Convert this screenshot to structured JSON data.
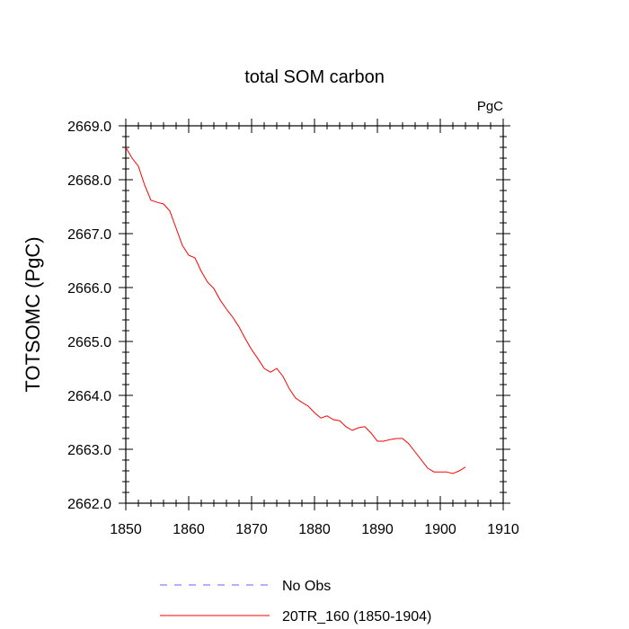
{
  "chart_data": {
    "type": "line",
    "title": "total SOM carbon",
    "units_label": "PgC",
    "ylabel": "TOTSOMC  (PgC)",
    "xlabel": "",
    "xlim": [
      1850,
      1910
    ],
    "ylim": [
      2662.0,
      2669.0
    ],
    "xticks": [
      1850,
      1860,
      1870,
      1880,
      1890,
      1900,
      1910
    ],
    "xtick_labels": [
      "1850",
      "1860",
      "1870",
      "1880",
      "1890",
      "1900",
      "1910"
    ],
    "yticks": [
      2662.0,
      2663.0,
      2664.0,
      2665.0,
      2666.0,
      2667.0,
      2668.0,
      2669.0
    ],
    "ytick_labels": [
      "2662.0",
      "2663.0",
      "2664.0",
      "2665.0",
      "2666.0",
      "2667.0",
      "2668.0",
      "2669.0"
    ],
    "series": [
      {
        "name": "No Obs",
        "color": "#6666ff",
        "dash": "dashed",
        "x": [],
        "y": []
      },
      {
        "name": "20TR_160 (1850-1904)",
        "color": "#ff0000",
        "dash": "solid",
        "x": [
          1850,
          1851,
          1852,
          1853,
          1854,
          1855,
          1856,
          1857,
          1858,
          1859,
          1860,
          1861,
          1862,
          1863,
          1864,
          1865,
          1866,
          1867,
          1868,
          1869,
          1870,
          1871,
          1872,
          1873,
          1874,
          1875,
          1876,
          1877,
          1878,
          1879,
          1880,
          1881,
          1882,
          1883,
          1884,
          1885,
          1886,
          1887,
          1888,
          1889,
          1890,
          1891,
          1892,
          1893,
          1894,
          1895,
          1896,
          1897,
          1898,
          1899,
          1900,
          1901,
          1902,
          1903,
          1904
        ],
        "y": [
          2668.6,
          2668.4,
          2668.25,
          2667.9,
          2667.62,
          2667.58,
          2667.55,
          2667.42,
          2667.1,
          2666.78,
          2666.6,
          2666.55,
          2666.3,
          2666.1,
          2665.98,
          2665.77,
          2665.6,
          2665.45,
          2665.27,
          2665.05,
          2664.85,
          2664.68,
          2664.5,
          2664.43,
          2664.5,
          2664.35,
          2664.12,
          2663.95,
          2663.87,
          2663.8,
          2663.68,
          2663.58,
          2663.62,
          2663.55,
          2663.53,
          2663.42,
          2663.35,
          2663.4,
          2663.42,
          2663.3,
          2663.15,
          2663.15,
          2663.18,
          2663.2,
          2663.2,
          2663.1,
          2662.95,
          2662.8,
          2662.65,
          2662.58,
          2662.58,
          2662.58,
          2662.55,
          2662.6,
          2662.67
        ]
      }
    ],
    "legend_position": "bottom"
  }
}
